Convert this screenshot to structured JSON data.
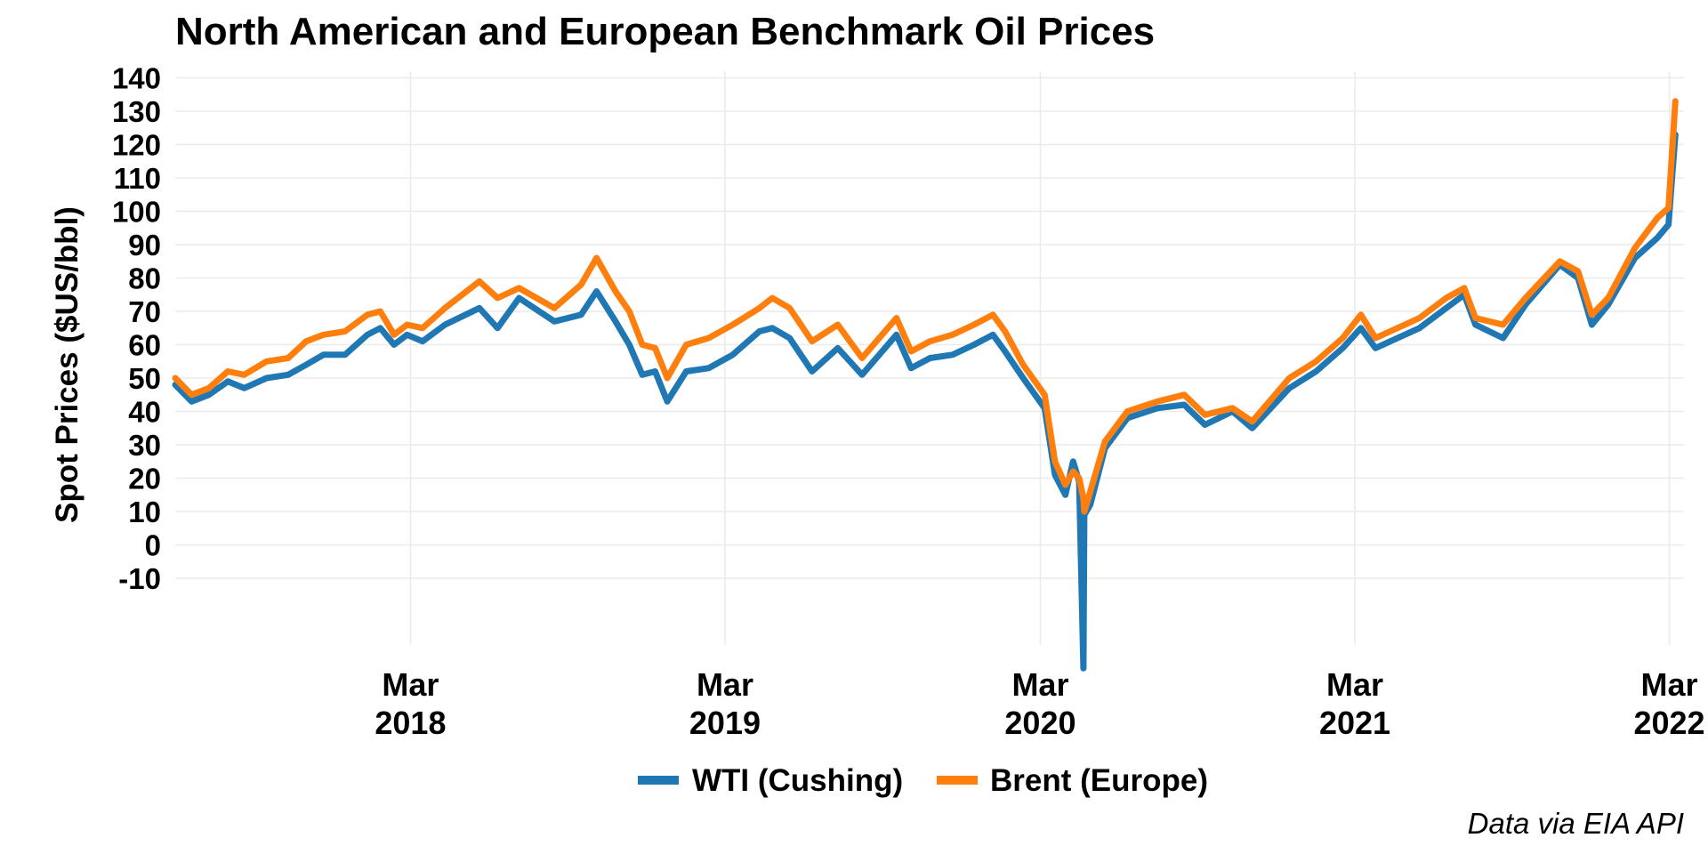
{
  "chart_data": {
    "type": "line",
    "title": "North American and European Benchmark Oil Prices",
    "ylabel": "Spot Prices ($US/bbl)",
    "xlabel": "",
    "caption": "Data via EIA API",
    "ylim": [
      -30,
      142
    ],
    "xlim": [
      "2017-06-01",
      "2022-03-18"
    ],
    "yticks": [
      -10,
      0,
      10,
      20,
      30,
      40,
      50,
      60,
      70,
      80,
      90,
      100,
      110,
      120,
      130,
      140
    ],
    "xticks": [
      {
        "month": "Mar",
        "year": "2018",
        "date": "2018-03-01"
      },
      {
        "month": "Mar",
        "year": "2019",
        "date": "2019-03-01"
      },
      {
        "month": "Mar",
        "year": "2020",
        "date": "2020-03-01"
      },
      {
        "month": "Mar",
        "year": "2021",
        "date": "2021-03-01"
      },
      {
        "month": "Mar",
        "year": "2022",
        "date": "2022-03-01"
      }
    ],
    "grid": true,
    "legend_position": "bottom",
    "series": [
      {
        "name": "WTI (Cushing)",
        "color": "#1f77b4",
        "points": [
          [
            "2017-06-01",
            48
          ],
          [
            "2017-06-20",
            43
          ],
          [
            "2017-07-10",
            45
          ],
          [
            "2017-08-01",
            49
          ],
          [
            "2017-08-20",
            47
          ],
          [
            "2017-09-15",
            50
          ],
          [
            "2017-10-10",
            51
          ],
          [
            "2017-10-31",
            54
          ],
          [
            "2017-11-20",
            57
          ],
          [
            "2017-12-15",
            57
          ],
          [
            "2018-01-10",
            63
          ],
          [
            "2018-01-25",
            65
          ],
          [
            "2018-02-10",
            60
          ],
          [
            "2018-02-25",
            63
          ],
          [
            "2018-03-15",
            61
          ],
          [
            "2018-04-10",
            66
          ],
          [
            "2018-05-20",
            71
          ],
          [
            "2018-06-10",
            65
          ],
          [
            "2018-07-05",
            74
          ],
          [
            "2018-08-15",
            67
          ],
          [
            "2018-09-15",
            69
          ],
          [
            "2018-10-03",
            76
          ],
          [
            "2018-10-25",
            67
          ],
          [
            "2018-11-10",
            60
          ],
          [
            "2018-11-25",
            51
          ],
          [
            "2018-12-10",
            52
          ],
          [
            "2018-12-24",
            43
          ],
          [
            "2019-01-15",
            52
          ],
          [
            "2019-02-10",
            53
          ],
          [
            "2019-03-10",
            57
          ],
          [
            "2019-04-10",
            64
          ],
          [
            "2019-04-25",
            65
          ],
          [
            "2019-05-15",
            62
          ],
          [
            "2019-06-10",
            52
          ],
          [
            "2019-07-10",
            59
          ],
          [
            "2019-08-07",
            51
          ],
          [
            "2019-09-16",
            63
          ],
          [
            "2019-10-03",
            53
          ],
          [
            "2019-10-25",
            56
          ],
          [
            "2019-11-20",
            57
          ],
          [
            "2019-12-15",
            60
          ],
          [
            "2020-01-06",
            63
          ],
          [
            "2020-01-20",
            58
          ],
          [
            "2020-02-10",
            50
          ],
          [
            "2020-03-06",
            41
          ],
          [
            "2020-03-18",
            21
          ],
          [
            "2020-03-30",
            15
          ],
          [
            "2020-04-08",
            25
          ],
          [
            "2020-04-15",
            19
          ],
          [
            "2020-04-20",
            -37
          ],
          [
            "2020-04-21",
            9
          ],
          [
            "2020-04-28",
            12
          ],
          [
            "2020-05-15",
            29
          ],
          [
            "2020-06-10",
            38
          ],
          [
            "2020-07-15",
            41
          ],
          [
            "2020-08-15",
            42
          ],
          [
            "2020-09-08",
            36
          ],
          [
            "2020-10-10",
            40
          ],
          [
            "2020-11-02",
            35
          ],
          [
            "2020-12-15",
            47
          ],
          [
            "2021-01-15",
            52
          ],
          [
            "2021-02-15",
            59
          ],
          [
            "2021-03-08",
            65
          ],
          [
            "2021-03-25",
            59
          ],
          [
            "2021-05-15",
            65
          ],
          [
            "2021-06-15",
            71
          ],
          [
            "2021-07-06",
            75
          ],
          [
            "2021-07-19",
            66
          ],
          [
            "2021-08-20",
            62
          ],
          [
            "2021-09-15",
            72
          ],
          [
            "2021-10-25",
            84
          ],
          [
            "2021-11-15",
            80
          ],
          [
            "2021-12-01",
            66
          ],
          [
            "2021-12-20",
            72
          ],
          [
            "2022-01-20",
            86
          ],
          [
            "2022-02-15",
            92
          ],
          [
            "2022-02-28",
            96
          ],
          [
            "2022-03-08",
            123
          ]
        ]
      },
      {
        "name": "Brent (Europe)",
        "color": "#ff7f0e",
        "points": [
          [
            "2017-06-01",
            50
          ],
          [
            "2017-06-20",
            45
          ],
          [
            "2017-07-10",
            47
          ],
          [
            "2017-08-01",
            52
          ],
          [
            "2017-08-20",
            51
          ],
          [
            "2017-09-15",
            55
          ],
          [
            "2017-10-10",
            56
          ],
          [
            "2017-10-31",
            61
          ],
          [
            "2017-11-20",
            63
          ],
          [
            "2017-12-15",
            64
          ],
          [
            "2018-01-10",
            69
          ],
          [
            "2018-01-25",
            70
          ],
          [
            "2018-02-10",
            63
          ],
          [
            "2018-02-25",
            66
          ],
          [
            "2018-03-15",
            65
          ],
          [
            "2018-04-10",
            71
          ],
          [
            "2018-05-20",
            79
          ],
          [
            "2018-06-10",
            74
          ],
          [
            "2018-07-05",
            77
          ],
          [
            "2018-08-15",
            71
          ],
          [
            "2018-09-15",
            78
          ],
          [
            "2018-10-03",
            86
          ],
          [
            "2018-10-25",
            76
          ],
          [
            "2018-11-10",
            70
          ],
          [
            "2018-11-25",
            60
          ],
          [
            "2018-12-10",
            59
          ],
          [
            "2018-12-24",
            50
          ],
          [
            "2019-01-15",
            60
          ],
          [
            "2019-02-10",
            62
          ],
          [
            "2019-03-10",
            66
          ],
          [
            "2019-04-10",
            71
          ],
          [
            "2019-04-25",
            74
          ],
          [
            "2019-05-15",
            71
          ],
          [
            "2019-06-10",
            61
          ],
          [
            "2019-07-10",
            66
          ],
          [
            "2019-08-07",
            56
          ],
          [
            "2019-09-16",
            68
          ],
          [
            "2019-10-03",
            58
          ],
          [
            "2019-10-25",
            61
          ],
          [
            "2019-11-20",
            63
          ],
          [
            "2019-12-15",
            66
          ],
          [
            "2020-01-06",
            69
          ],
          [
            "2020-01-20",
            64
          ],
          [
            "2020-02-10",
            54
          ],
          [
            "2020-03-06",
            45
          ],
          [
            "2020-03-18",
            25
          ],
          [
            "2020-03-30",
            18
          ],
          [
            "2020-04-08",
            22
          ],
          [
            "2020-04-15",
            20
          ],
          [
            "2020-04-20",
            14
          ],
          [
            "2020-04-21",
            10
          ],
          [
            "2020-04-28",
            16
          ],
          [
            "2020-05-15",
            31
          ],
          [
            "2020-06-10",
            40
          ],
          [
            "2020-07-15",
            43
          ],
          [
            "2020-08-15",
            45
          ],
          [
            "2020-09-08",
            39
          ],
          [
            "2020-10-10",
            41
          ],
          [
            "2020-11-02",
            37
          ],
          [
            "2020-12-15",
            50
          ],
          [
            "2021-01-15",
            55
          ],
          [
            "2021-02-15",
            62
          ],
          [
            "2021-03-08",
            69
          ],
          [
            "2021-03-25",
            62
          ],
          [
            "2021-05-15",
            68
          ],
          [
            "2021-06-15",
            74
          ],
          [
            "2021-07-06",
            77
          ],
          [
            "2021-07-19",
            68
          ],
          [
            "2021-08-20",
            66
          ],
          [
            "2021-09-15",
            74
          ],
          [
            "2021-10-25",
            85
          ],
          [
            "2021-11-15",
            82
          ],
          [
            "2021-12-01",
            69
          ],
          [
            "2021-12-20",
            74
          ],
          [
            "2022-01-20",
            89
          ],
          [
            "2022-02-15",
            98
          ],
          [
            "2022-02-28",
            101
          ],
          [
            "2022-03-08",
            133
          ]
        ]
      }
    ]
  }
}
